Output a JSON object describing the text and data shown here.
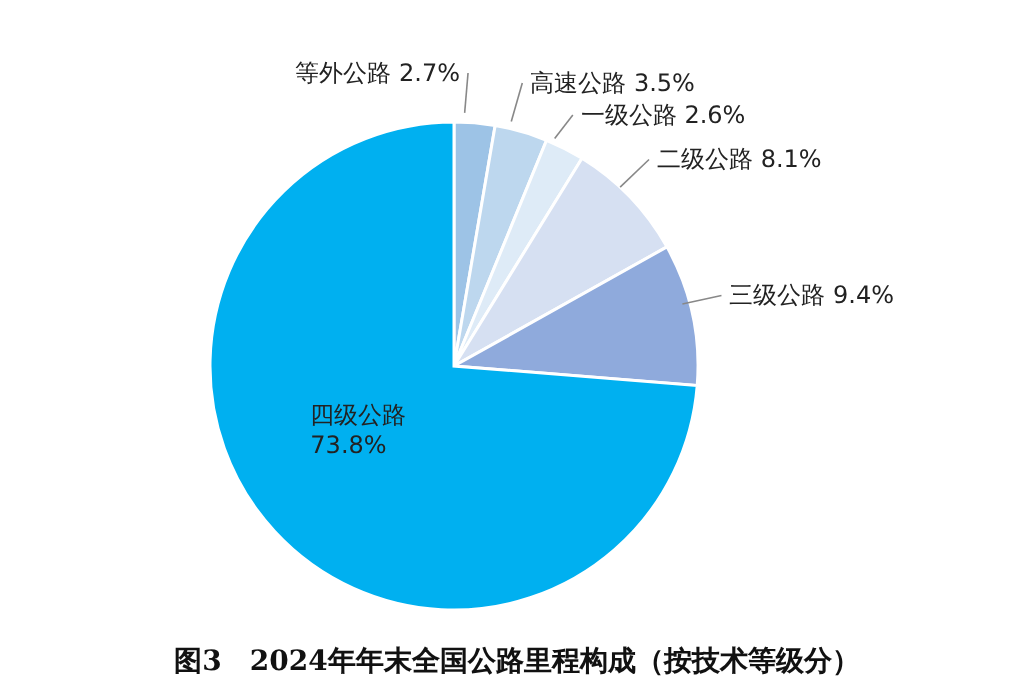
{
  "chart_data": {
    "type": "pie",
    "title": "图3　2024年年末全国公路里程构成（按技术等级分）",
    "categories": [
      "等外公路",
      "高速公路",
      "一级公路",
      "二级公路",
      "三级公路",
      "四级公路"
    ],
    "values": [
      2.7,
      3.5,
      2.6,
      8.1,
      9.4,
      73.8
    ],
    "value_labels": [
      "2.7%",
      "3.5%",
      "2.6%",
      "8.1%",
      "9.4%",
      "73.8%"
    ],
    "colors": [
      "#9dc3e6",
      "#bdd7ee",
      "#deebf7",
      "#d6e0f2",
      "#8faadc",
      "#00b0f0"
    ],
    "legend": false
  }
}
